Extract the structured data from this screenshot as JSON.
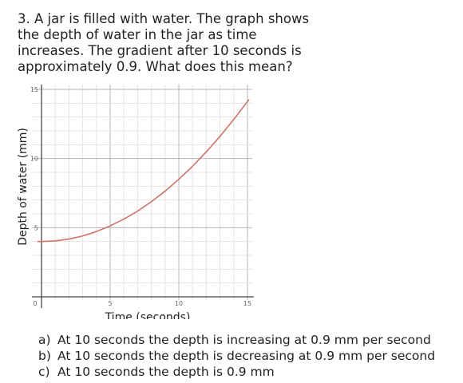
{
  "question": {
    "text": "3. A jar is filled with water. The graph shows the depth of water in the jar as time increases. The gradient after 10 seconds is approximately 0.9. What does this mean?"
  },
  "chart_data": {
    "type": "line",
    "xlabel": "Time (seconds)",
    "ylabel": "Depth of water  (mm)",
    "xlim": [
      0,
      15
    ],
    "ylim": [
      0,
      15
    ],
    "x_ticks": [
      "0",
      "5",
      "10",
      "15"
    ],
    "y_ticks": [
      "5",
      "10",
      "15"
    ],
    "grid": true,
    "series": [
      {
        "color": "#cc7466",
        "x": [
          0,
          1,
          2,
          3,
          4,
          5,
          6,
          7,
          8,
          9,
          10,
          11,
          12,
          13,
          14,
          15
        ],
        "y": [
          4.0,
          4.04,
          4.18,
          4.4,
          4.72,
          5.13,
          5.62,
          6.2,
          6.88,
          7.64,
          8.5,
          9.44,
          10.48,
          11.6,
          12.82,
          14.12
        ]
      }
    ]
  },
  "options": [
    {
      "letter": "a)",
      "text": "At 10 seconds the depth is increasing at 0.9 mm per second"
    },
    {
      "letter": "b)",
      "text": "At 10 seconds the depth is decreasing at 0.9 mm per second"
    },
    {
      "letter": "c)",
      "text": "At 10 seconds the depth is 0.9 mm"
    }
  ]
}
